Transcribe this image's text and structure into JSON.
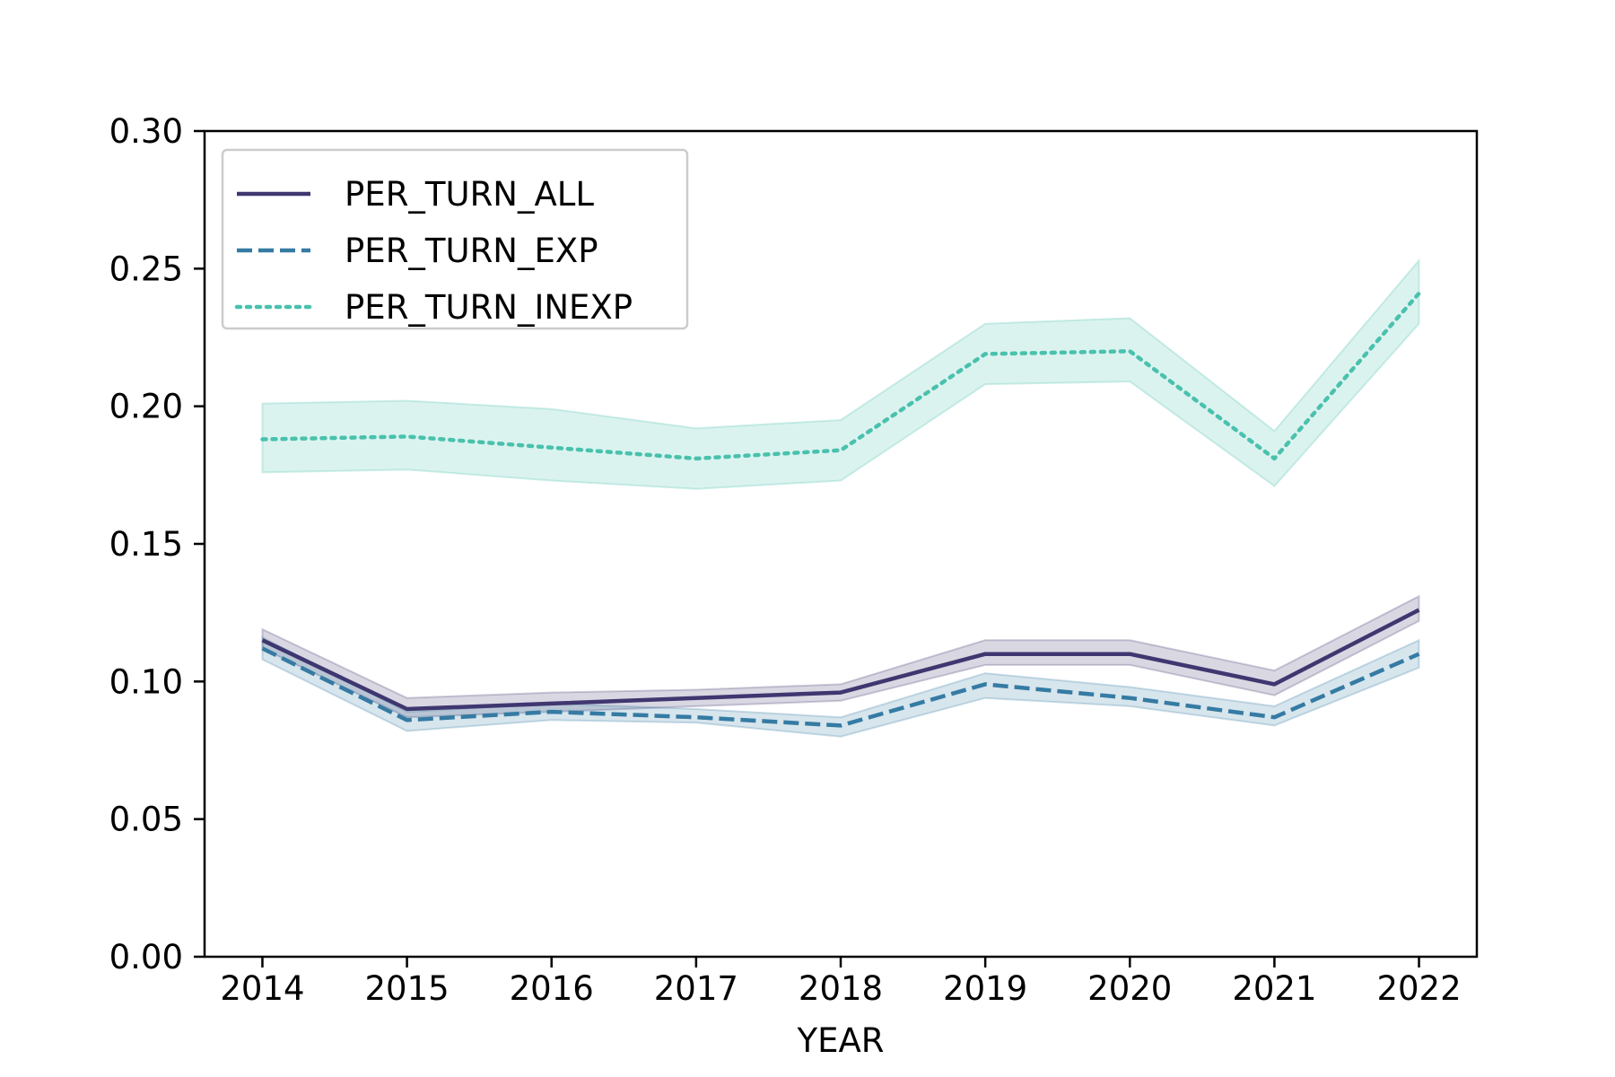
{
  "chart_data": {
    "type": "line",
    "title": "",
    "xlabel": "YEAR",
    "ylabel": "",
    "x": [
      2014,
      2015,
      2016,
      2017,
      2018,
      2019,
      2020,
      2021,
      2022
    ],
    "x_tick_labels": [
      "2014",
      "2015",
      "2016",
      "2017",
      "2018",
      "2019",
      "2020",
      "2021",
      "2022"
    ],
    "xlim": [
      2013.6,
      2022.4
    ],
    "ylim": [
      0,
      0.3
    ],
    "y_ticks": [
      0,
      0.05,
      0.1,
      0.15,
      0.2,
      0.25,
      0.3
    ],
    "y_tick_labels": [
      "0.00",
      "0.05",
      "0.10",
      "0.15",
      "0.20",
      "0.25",
      "0.30"
    ],
    "grid": false,
    "legend_position": "top-left",
    "series": [
      {
        "name": "PER_TURN_ALL",
        "color": "#3f3770",
        "style": "solid",
        "values": [
          0.115,
          0.09,
          0.092,
          0.094,
          0.096,
          0.11,
          0.11,
          0.099,
          0.126
        ],
        "ci_lower": [
          0.112,
          0.087,
          0.089,
          0.091,
          0.093,
          0.106,
          0.106,
          0.095,
          0.122
        ],
        "ci_upper": [
          0.119,
          0.094,
          0.096,
          0.097,
          0.099,
          0.115,
          0.115,
          0.104,
          0.131
        ]
      },
      {
        "name": "PER_TURN_EXP",
        "color": "#357ba3",
        "style": "dashed",
        "values": [
          0.112,
          0.086,
          0.089,
          0.087,
          0.084,
          0.099,
          0.094,
          0.087,
          0.11
        ],
        "ci_lower": [
          0.108,
          0.082,
          0.086,
          0.085,
          0.08,
          0.094,
          0.091,
          0.084,
          0.105
        ],
        "ci_upper": [
          0.116,
          0.089,
          0.092,
          0.09,
          0.087,
          0.103,
          0.098,
          0.091,
          0.115
        ]
      },
      {
        "name": "PER_TURN_INEXP",
        "color": "#49c1ad",
        "style": "dotted",
        "values": [
          0.188,
          0.189,
          0.185,
          0.181,
          0.184,
          0.219,
          0.22,
          0.181,
          0.241
        ],
        "ci_lower": [
          0.176,
          0.177,
          0.173,
          0.17,
          0.173,
          0.208,
          0.209,
          0.171,
          0.23
        ],
        "ci_upper": [
          0.201,
          0.202,
          0.199,
          0.192,
          0.195,
          0.23,
          0.232,
          0.191,
          0.253
        ]
      }
    ]
  }
}
